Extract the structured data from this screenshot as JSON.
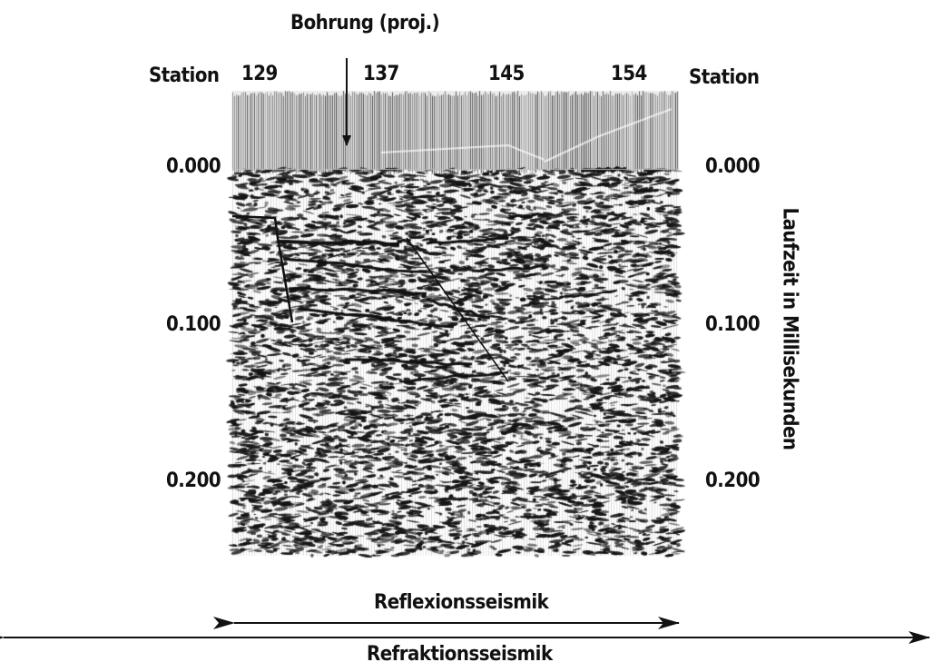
{
  "figure": {
    "borehole_label": "Bohrung (proj.)",
    "station_label_left": "Station",
    "station_label_right": "Station",
    "stations": [
      "129",
      "137",
      "145",
      "154"
    ],
    "time_ticks_left": [
      "0.000",
      "0.100",
      "0.200"
    ],
    "time_ticks_right": [
      "0.000",
      "0.100",
      "0.200"
    ],
    "vertical_axis_label": "Laufzeit in Millisekunden",
    "reflection_label": "Reflexionsseismik",
    "refraction_label": "Refraktionsseismik"
  }
}
